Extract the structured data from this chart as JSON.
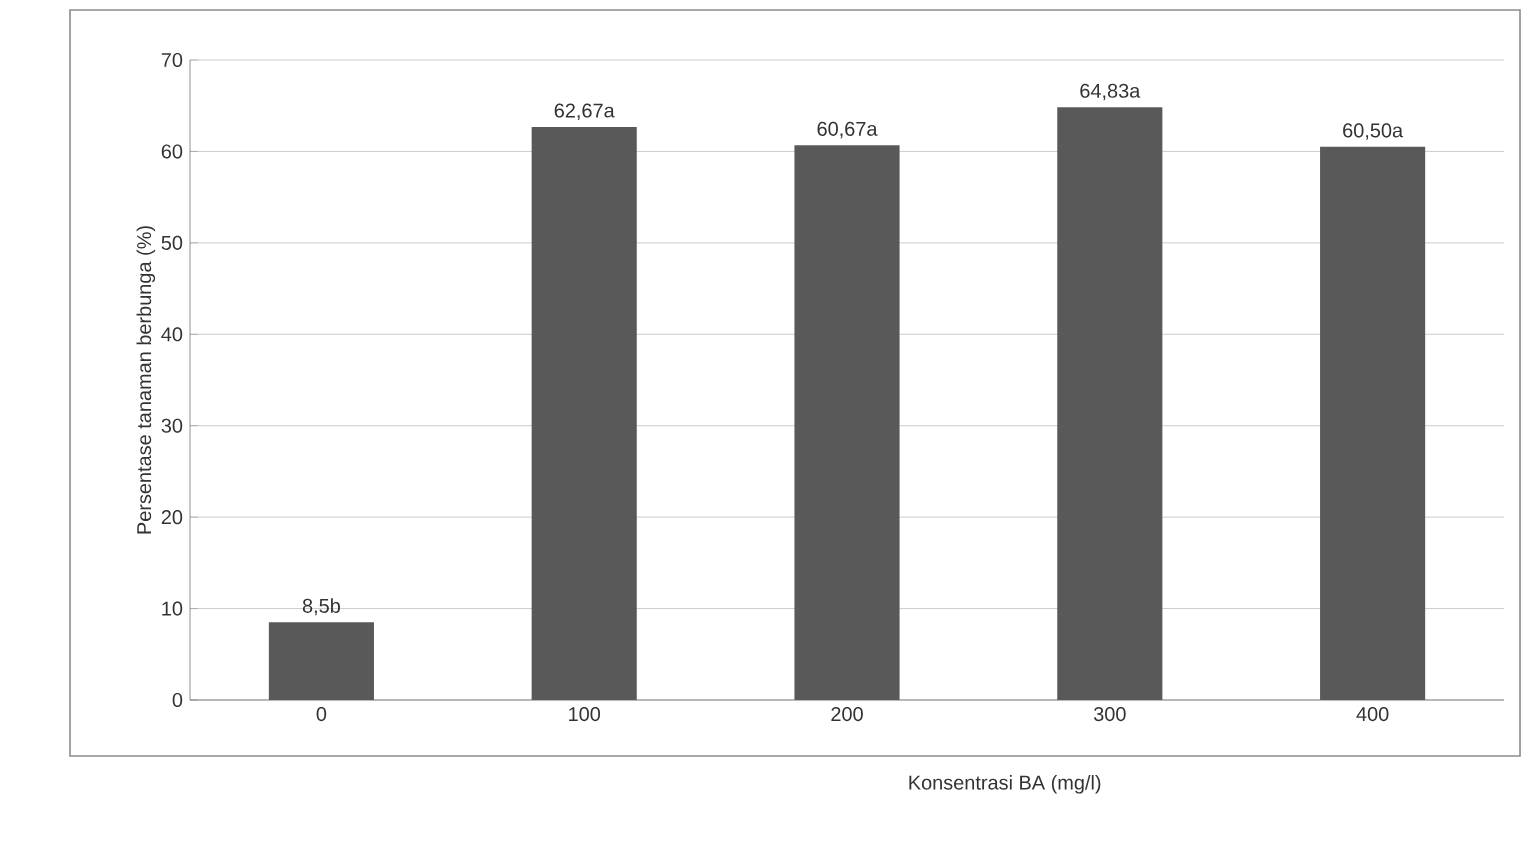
{
  "chart_data": {
    "type": "bar",
    "xlabel": "Konsentrasi  BA (mg/l)",
    "ylabel": "Persentase tanaman berbunga  (%)",
    "categories": [
      "0",
      "100",
      "200",
      "300",
      "400"
    ],
    "values": [
      8.5,
      62.67,
      60.67,
      64.83,
      60.5
    ],
    "value_labels": [
      "8,5b",
      "62,67a",
      "60,67a",
      "64,83a",
      "60,50a"
    ],
    "color": "#595959",
    "ylim": [
      0,
      70
    ],
    "yticks": [
      0,
      10,
      20,
      30,
      40,
      50,
      60,
      70
    ],
    "grid": "y"
  }
}
